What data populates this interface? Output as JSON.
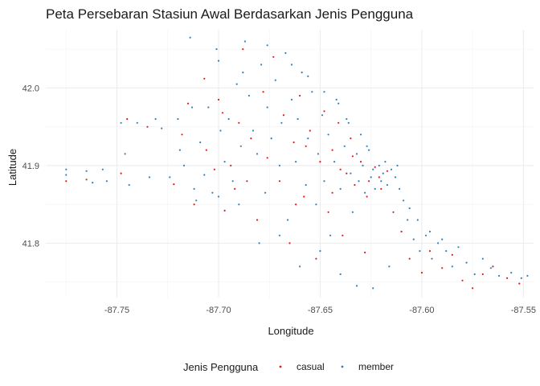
{
  "chart_data": {
    "type": "scatter",
    "title": "Peta Persebaran Stasiun Awal Berdasarkan Jenis Pengguna",
    "xlabel": "Longitude",
    "ylabel": "Latitude",
    "xlim": [
      -87.785,
      -87.545
    ],
    "ylim": [
      41.73,
      42.075
    ],
    "x_ticks": [
      -87.75,
      -87.7,
      -87.65,
      -87.6,
      -87.55
    ],
    "x_tick_labels": [
      "-87.75",
      "-87.70",
      "-87.65",
      "-87.60",
      "-87.55"
    ],
    "y_ticks": [
      41.8,
      41.9,
      42.0
    ],
    "y_tick_labels": [
      "41.8",
      "41.9",
      "42.0"
    ],
    "grid": true,
    "legend": {
      "title": "Jenis Pengguna",
      "position": "bottom"
    },
    "series": [
      {
        "name": "casual",
        "color": "#e41a1c",
        "points": [
          [
            -87.775,
            41.88
          ],
          [
            -87.765,
            41.882
          ],
          [
            -87.748,
            41.89
          ],
          [
            -87.745,
            41.96
          ],
          [
            -87.735,
            41.95
          ],
          [
            -87.722,
            41.876
          ],
          [
            -87.718,
            41.94
          ],
          [
            -87.712,
            41.85
          ],
          [
            -87.706,
            41.92
          ],
          [
            -87.7,
            41.985
          ],
          [
            -87.698,
            41.968
          ],
          [
            -87.694,
            41.9
          ],
          [
            -87.692,
            41.87
          ],
          [
            -87.69,
            41.955
          ],
          [
            -87.688,
            42.05
          ],
          [
            -87.684,
            41.935
          ],
          [
            -87.681,
            41.83
          ],
          [
            -87.678,
            41.995
          ],
          [
            -87.676,
            41.91
          ],
          [
            -87.673,
            42.04
          ],
          [
            -87.67,
            41.88
          ],
          [
            -87.668,
            41.965
          ],
          [
            -87.665,
            41.8
          ],
          [
            -87.663,
            41.93
          ],
          [
            -87.66,
            41.99
          ],
          [
            -87.658,
            41.86
          ],
          [
            -87.655,
            41.945
          ],
          [
            -87.652,
            41.78
          ],
          [
            -87.65,
            41.905
          ],
          [
            -87.648,
            41.97
          ],
          [
            -87.646,
            41.84
          ],
          [
            -87.644,
            41.92
          ],
          [
            -87.641,
            41.955
          ],
          [
            -87.639,
            41.81
          ],
          [
            -87.637,
            41.89
          ],
          [
            -87.635,
            41.935
          ],
          [
            -87.633,
            41.875
          ],
          [
            -87.63,
            41.905
          ],
          [
            -87.628,
            41.788
          ],
          [
            -87.626,
            41.88
          ],
          [
            -87.623,
            41.898
          ],
          [
            -87.62,
            41.87
          ],
          [
            -87.617,
            41.893
          ],
          [
            -87.614,
            41.84
          ],
          [
            -87.61,
            41.815
          ],
          [
            -87.606,
            41.78
          ],
          [
            -87.6,
            41.762
          ],
          [
            -87.596,
            41.79
          ],
          [
            -87.59,
            41.768
          ],
          [
            -87.585,
            41.785
          ],
          [
            -87.58,
            41.752
          ],
          [
            -87.575,
            41.742
          ],
          [
            -87.57,
            41.76
          ],
          [
            -87.565,
            41.77
          ],
          [
            -87.558,
            41.755
          ],
          [
            -87.552,
            41.748
          ],
          [
            -87.707,
            42.012
          ],
          [
            -87.697,
            41.842
          ],
          [
            -87.686,
            41.88
          ],
          [
            -87.662,
            41.85
          ],
          [
            -87.657,
            41.925
          ],
          [
            -87.644,
            41.865
          ],
          [
            -87.64,
            41.895
          ],
          [
            -87.634,
            41.912
          ],
          [
            -87.627,
            41.86
          ],
          [
            -87.621,
            41.885
          ],
          [
            -87.715,
            41.98
          ],
          [
            -87.702,
            41.895
          ]
        ]
      },
      {
        "name": "member",
        "color": "#377eb8",
        "points": [
          [
            -87.775,
            41.895
          ],
          [
            -87.775,
            41.888
          ],
          [
            -87.765,
            41.893
          ],
          [
            -87.762,
            41.878
          ],
          [
            -87.757,
            41.895
          ],
          [
            -87.755,
            41.88
          ],
          [
            -87.748,
            41.955
          ],
          [
            -87.746,
            41.915
          ],
          [
            -87.744,
            41.875
          ],
          [
            -87.74,
            41.955
          ],
          [
            -87.734,
            41.885
          ],
          [
            -87.731,
            41.96
          ],
          [
            -87.728,
            41.948
          ],
          [
            -87.724,
            41.885
          ],
          [
            -87.72,
            41.96
          ],
          [
            -87.717,
            41.9
          ],
          [
            -87.714,
            42.065
          ],
          [
            -87.713,
            41.975
          ],
          [
            -87.711,
            41.855
          ],
          [
            -87.709,
            41.93
          ],
          [
            -87.707,
            41.888
          ],
          [
            -87.705,
            41.975
          ],
          [
            -87.703,
            41.865
          ],
          [
            -87.701,
            42.05
          ],
          [
            -87.7,
            42.035
          ],
          [
            -87.699,
            41.945
          ],
          [
            -87.697,
            41.905
          ],
          [
            -87.695,
            41.96
          ],
          [
            -87.693,
            41.88
          ],
          [
            -87.691,
            42.005
          ],
          [
            -87.689,
            41.925
          ],
          [
            -87.687,
            42.06
          ],
          [
            -87.685,
            41.99
          ],
          [
            -87.683,
            41.945
          ],
          [
            -87.681,
            41.915
          ],
          [
            -87.679,
            42.03
          ],
          [
            -87.677,
            41.865
          ],
          [
            -87.676,
            41.975
          ],
          [
            -87.674,
            41.935
          ],
          [
            -87.672,
            42.01
          ],
          [
            -87.67,
            41.9
          ],
          [
            -87.669,
            41.955
          ],
          [
            -87.667,
            42.045
          ],
          [
            -87.666,
            41.83
          ],
          [
            -87.664,
            41.985
          ],
          [
            -87.662,
            41.905
          ],
          [
            -87.661,
            41.96
          ],
          [
            -87.659,
            42.02
          ],
          [
            -87.657,
            41.875
          ],
          [
            -87.656,
            41.935
          ],
          [
            -87.654,
            41.995
          ],
          [
            -87.652,
            41.85
          ],
          [
            -87.651,
            41.915
          ],
          [
            -87.649,
            41.965
          ],
          [
            -87.648,
            41.88
          ],
          [
            -87.646,
            41.94
          ],
          [
            -87.645,
            41.81
          ],
          [
            -87.643,
            41.905
          ],
          [
            -87.641,
            41.98
          ],
          [
            -87.64,
            41.87
          ],
          [
            -87.638,
            41.925
          ],
          [
            -87.637,
            41.96
          ],
          [
            -87.635,
            41.89
          ],
          [
            -87.634,
            41.84
          ],
          [
            -87.632,
            41.915
          ],
          [
            -87.631,
            41.88
          ],
          [
            -87.629,
            41.9
          ],
          [
            -87.628,
            41.865
          ],
          [
            -87.627,
            41.925
          ],
          [
            -87.625,
            41.885
          ],
          [
            -87.624,
            41.895
          ],
          [
            -87.623,
            41.87
          ],
          [
            -87.621,
            41.9
          ],
          [
            -87.62,
            41.88
          ],
          [
            -87.619,
            41.89
          ],
          [
            -87.617,
            41.875
          ],
          [
            -87.615,
            41.895
          ],
          [
            -87.613,
            41.885
          ],
          [
            -87.611,
            41.87
          ],
          [
            -87.609,
            41.855
          ],
          [
            -87.607,
            41.83
          ],
          [
            -87.604,
            41.805
          ],
          [
            -87.601,
            41.79
          ],
          [
            -87.598,
            41.81
          ],
          [
            -87.595,
            41.78
          ],
          [
            -87.592,
            41.8
          ],
          [
            -87.588,
            41.79
          ],
          [
            -87.585,
            41.77
          ],
          [
            -87.582,
            41.795
          ],
          [
            -87.578,
            41.775
          ],
          [
            -87.574,
            41.76
          ],
          [
            -87.57,
            41.78
          ],
          [
            -87.566,
            41.768
          ],
          [
            -87.562,
            41.758
          ],
          [
            -87.556,
            41.762
          ],
          [
            -87.551,
            41.755
          ],
          [
            -87.548,
            41.758
          ],
          [
            -87.64,
            41.76
          ],
          [
            -87.632,
            41.745
          ],
          [
            -87.624,
            41.742
          ],
          [
            -87.616,
            41.77
          ],
          [
            -87.65,
            41.79
          ],
          [
            -87.66,
            41.77
          ],
          [
            -87.67,
            41.81
          ],
          [
            -87.68,
            41.8
          ],
          [
            -87.69,
            41.85
          ],
          [
            -87.7,
            41.86
          ],
          [
            -87.712,
            41.87
          ],
          [
            -87.719,
            41.92
          ],
          [
            -87.688,
            42.02
          ],
          [
            -87.676,
            42.055
          ],
          [
            -87.664,
            42.03
          ],
          [
            -87.656,
            42.015
          ],
          [
            -87.648,
            41.995
          ],
          [
            -87.642,
            41.985
          ],
          [
            -87.636,
            41.955
          ],
          [
            -87.63,
            41.94
          ],
          [
            -87.626,
            41.92
          ],
          [
            -87.618,
            41.905
          ],
          [
            -87.612,
            41.9
          ],
          [
            -87.606,
            41.845
          ],
          [
            -87.602,
            41.83
          ],
          [
            -87.596,
            41.815
          ],
          [
            -87.59,
            41.805
          ]
        ]
      }
    ]
  }
}
